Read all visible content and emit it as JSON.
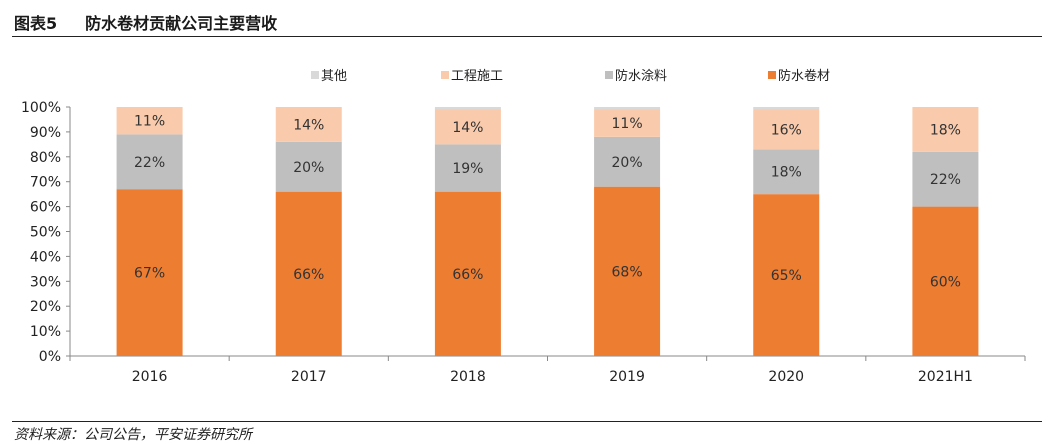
{
  "figure": {
    "number": "图表5",
    "title": "防水卷材贡献公司主要营收",
    "source": "资料来源：公司公告，平安证券研究所"
  },
  "colors": {
    "防水卷材": "#ED7D31",
    "防水涂料": "#BFBFBF",
    "工程施工": "#F9CBAC",
    "其他": "#D9D9D9"
  },
  "chart_data": {
    "type": "bar",
    "stacked": true,
    "title": "",
    "xlabel": "",
    "ylabel": "",
    "ylim": [
      0,
      100
    ],
    "yticks": [
      "0%",
      "10%",
      "20%",
      "30%",
      "40%",
      "50%",
      "60%",
      "70%",
      "80%",
      "90%",
      "100%"
    ],
    "categories": [
      "2016",
      "2017",
      "2018",
      "2019",
      "2020",
      "2021H1"
    ],
    "series": [
      {
        "name": "防水卷材",
        "values": [
          67,
          66,
          66,
          68,
          65,
          60
        ],
        "labels": [
          "67%",
          "66%",
          "66%",
          "68%",
          "65%",
          "60%"
        ]
      },
      {
        "name": "防水涂料",
        "values": [
          22,
          20,
          19,
          20,
          18,
          22
        ],
        "labels": [
          "22%",
          "20%",
          "19%",
          "20%",
          "18%",
          "22%"
        ]
      },
      {
        "name": "工程施工",
        "values": [
          11,
          14,
          14,
          11,
          16,
          18
        ],
        "labels": [
          "11%",
          "14%",
          "14%",
          "11%",
          "16%",
          "18%"
        ]
      },
      {
        "name": "其他",
        "values": [
          0,
          0,
          1,
          1,
          1,
          0
        ],
        "labels": []
      }
    ],
    "legend_order": [
      "其他",
      "工程施工",
      "防水涂料",
      "防水卷材"
    ],
    "legend_position": "top",
    "grid": false
  }
}
